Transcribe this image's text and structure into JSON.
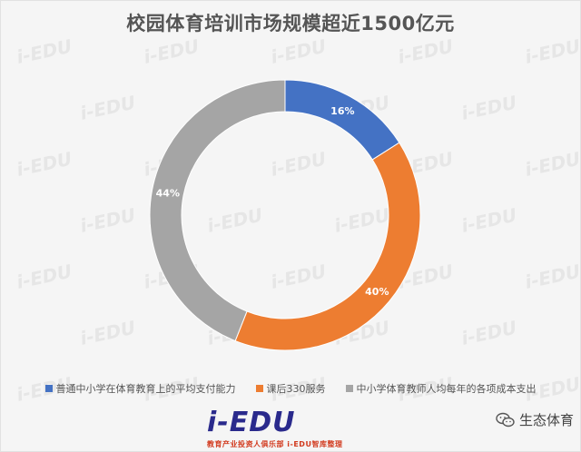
{
  "chart_data": {
    "type": "pie",
    "title": "校园体育培训市场规模超近1500亿元",
    "categories": [
      "普通中小学在体育教育上的平均支付能力",
      "课后330服务",
      "中小学体育教师人均每年的各项成本支出"
    ],
    "values": [
      16,
      40,
      44
    ],
    "labels": [
      "16%",
      "40%",
      "44%"
    ],
    "colors": [
      "#4472c4",
      "#ed7d31",
      "#a5a5a5"
    ],
    "donut": true,
    "legend_position": "bottom"
  },
  "watermark": {
    "text": "i-EDU"
  },
  "footer": {
    "logo_text": "i-EDU",
    "logo_tagline": "教育产业投资人俱乐部 i-EDU智库整理",
    "wechat_label": "生态体育",
    "wechat_icon": "wechat-icon"
  }
}
